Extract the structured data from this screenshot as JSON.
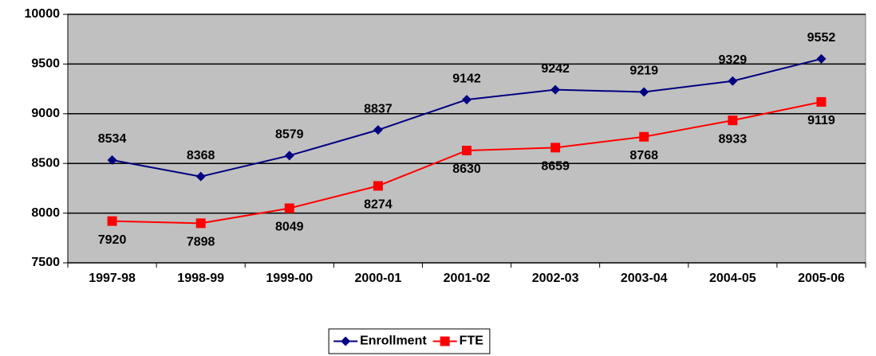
{
  "chart_data": {
    "type": "line",
    "categories": [
      "1997-98",
      "1998-99",
      "1999-00",
      "2000-01",
      "2001-02",
      "2002-03",
      "2003-04",
      "2004-05",
      "2005-06"
    ],
    "series": [
      {
        "name": "Enrollment",
        "color": "#000080",
        "marker": "diamond",
        "values": [
          8534,
          8368,
          8579,
          8837,
          9142,
          9242,
          9219,
          9329,
          9552
        ]
      },
      {
        "name": "FTE",
        "color": "#ff0000",
        "marker": "square",
        "values": [
          7920,
          7898,
          8049,
          8274,
          8630,
          8659,
          8768,
          8933,
          9119
        ]
      }
    ],
    "ylim": [
      7500,
      10000
    ],
    "yticks": [
      7500,
      8000,
      8500,
      9000,
      9500,
      10000
    ],
    "grid": true,
    "plot_background": "#c0c0c0",
    "legend": "bottom",
    "data_labels": true
  }
}
